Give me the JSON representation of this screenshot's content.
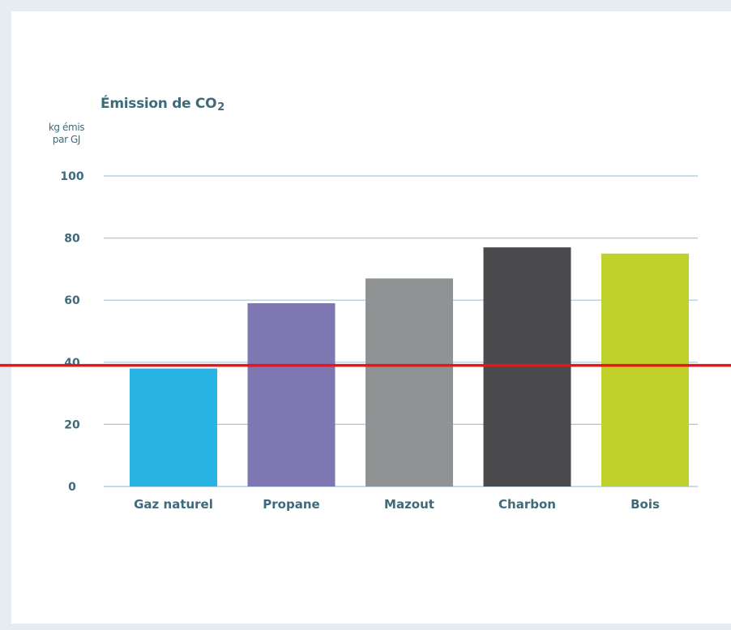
{
  "chart_data": {
    "type": "bar",
    "title": "Émission de CO",
    "title_subscript": "2",
    "ylabel_line1": "kg émis",
    "ylabel_line2": "par GJ",
    "xlabel": "",
    "categories": [
      "Gaz naturel",
      "Propane",
      "Mazout",
      "Charbon",
      "Bois"
    ],
    "values": [
      38,
      59,
      67,
      77,
      75
    ],
    "colors": [
      "#27b3e3",
      "#7f77b1",
      "#8f9393",
      "#4b4b4d",
      "#bfd12a"
    ],
    "ylim": [
      0,
      100
    ],
    "yticks": [
      "0",
      "20",
      "40",
      "60",
      "80",
      "100"
    ],
    "grid": true,
    "gridline_color": "#a9c6d8",
    "reference_line": {
      "value": 39,
      "color": "#e8141c"
    }
  }
}
